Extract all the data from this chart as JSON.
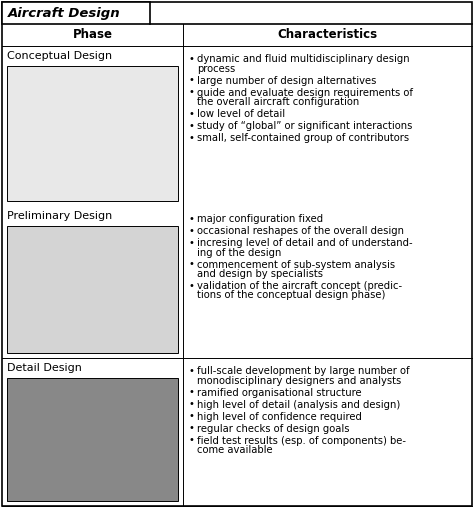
{
  "title": "Aircraft Design",
  "col1_header": "Phase",
  "col2_header": "Characteristics",
  "phases": [
    {
      "name": "Conceptual Design",
      "img_color": "#e8e8e8",
      "bullets": [
        [
          "dynamic and fluid multidisciplinary design",
          "process"
        ],
        [
          "large number of design alternatives"
        ],
        [
          "guide and evaluate design requirements of",
          "the overall aircraft configuration"
        ],
        [
          "low level of detail"
        ],
        [
          "study of “global” or significant interactions"
        ],
        [
          "small, self-contained group of contributors"
        ]
      ]
    },
    {
      "name": "Preliminary Design",
      "img_color": "#d4d4d4",
      "bullets": [
        [
          "major configuration fixed"
        ],
        [
          "occasional reshapes of the overall design"
        ],
        [
          "incresing level of detail and of understand-",
          "ing of the design"
        ],
        [
          "commencement of sub-system analysis",
          "and design by specialists"
        ],
        [
          "validation of the aircraft concept (predic-",
          "tions of the conceptual design phase)"
        ]
      ]
    },
    {
      "name": "Detail Design",
      "img_color": "#888888",
      "bullets": [
        [
          "full-scale development by large number of",
          "monodisciplinary designers and analysts"
        ],
        [
          "ramified organisational structure"
        ],
        [
          "high level of detail (analysis and design)"
        ],
        [
          "high level of confidence required"
        ],
        [
          "regular checks of design goals"
        ],
        [
          "field test results (esp. of components) be-",
          "come available"
        ]
      ]
    }
  ],
  "bg_color": "#ffffff",
  "border_color": "#000000",
  "text_color": "#000000",
  "title_fontsize": 9.5,
  "header_fontsize": 8.5,
  "phase_name_fontsize": 8,
  "bullet_fontsize": 7.2,
  "fig_width": 4.74,
  "fig_height": 5.08,
  "dpi": 100
}
